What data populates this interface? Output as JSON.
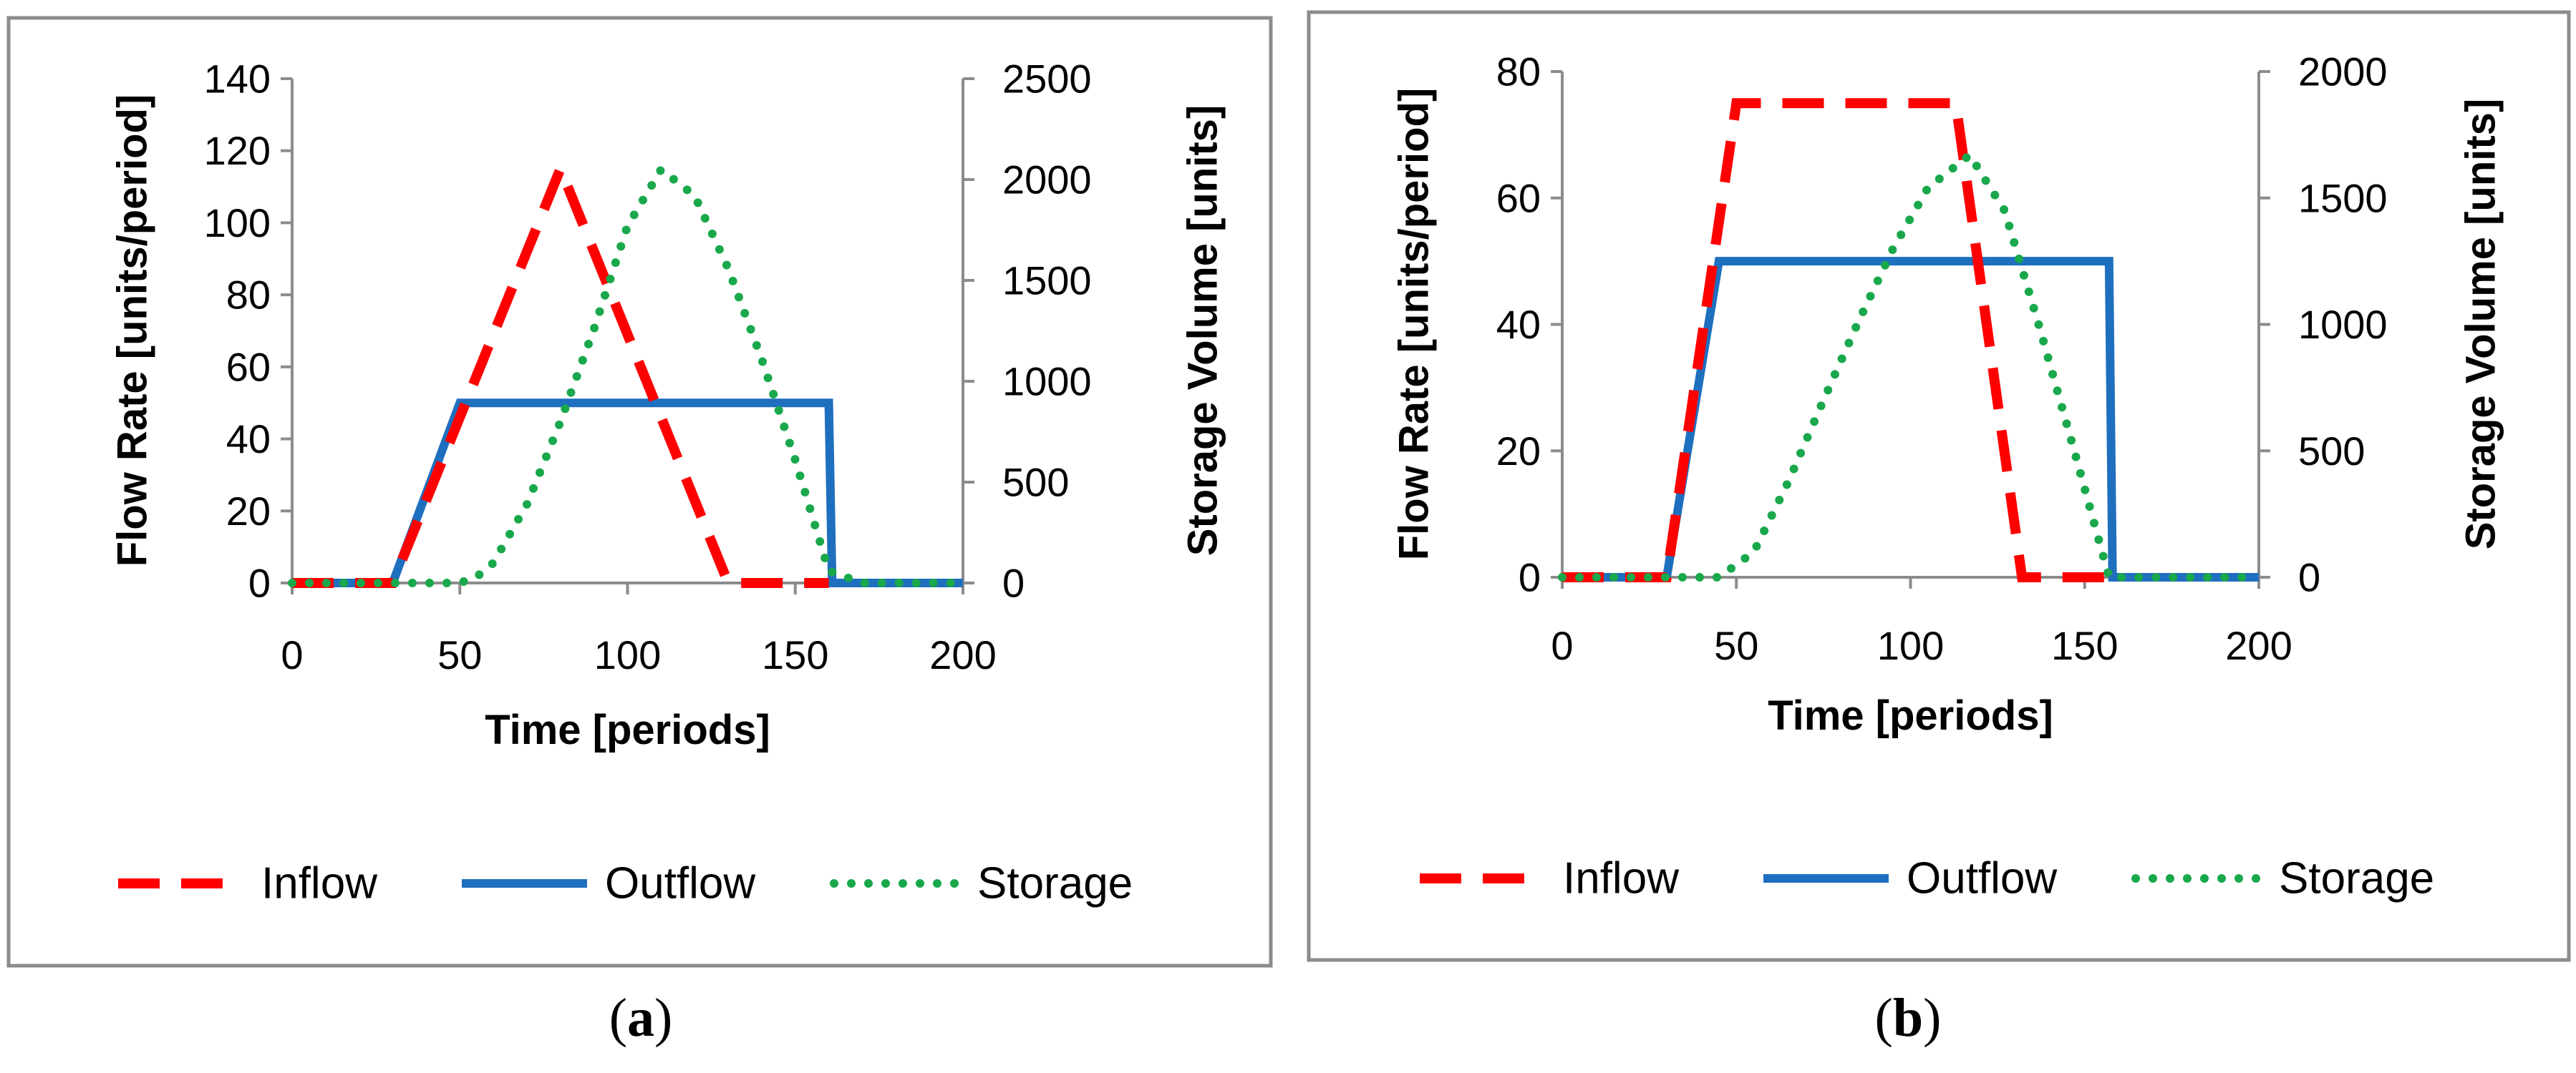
{
  "colors": {
    "inflow": "#ff0000",
    "outflow": "#1f6fbf",
    "storage": "#19a84b",
    "axis": "#8c8c8c",
    "frame": "#8c8c8c"
  },
  "chart_data": [
    {
      "id": "a",
      "panel_label": {
        "open": "(",
        "letter": "a",
        "close": ")"
      },
      "type": "line",
      "xlabel": "Time [periods]",
      "ylabel": "Flow Rate [units/period]",
      "y2label": "Storage Volume [units]",
      "xlim": [
        0,
        200
      ],
      "ylim": [
        0,
        140
      ],
      "y2lim": [
        0,
        2500
      ],
      "xticks": [
        0,
        50,
        100,
        150,
        200
      ],
      "yticks": [
        0,
        20,
        40,
        60,
        80,
        100,
        120,
        140
      ],
      "y2ticks": [
        0,
        500,
        1000,
        1500,
        2000,
        2500
      ],
      "legend": [
        "Inflow",
        "Outflow",
        "Storage"
      ],
      "legend_position": "bottom",
      "series": [
        {
          "name": "Inflow",
          "axis": "left",
          "style": "dashed",
          "points": [
            [
              0,
              0
            ],
            [
              30,
              0
            ],
            [
              80,
              115
            ],
            [
              130,
              0
            ],
            [
              160,
              0
            ]
          ]
        },
        {
          "name": "Outflow",
          "axis": "left",
          "style": "solid",
          "points": [
            [
              0,
              0
            ],
            [
              30,
              0
            ],
            [
              50,
              50
            ],
            [
              160,
              50
            ],
            [
              161,
              0
            ],
            [
              200,
              0
            ]
          ]
        },
        {
          "name": "Storage",
          "axis": "right",
          "style": "dotted",
          "points": [
            [
              0,
              0
            ],
            [
              50,
              0
            ],
            [
              55,
              30
            ],
            [
              60,
              100
            ],
            [
              70,
              390
            ],
            [
              80,
              800
            ],
            [
              90,
              1260
            ],
            [
              100,
              1770
            ],
            [
              110,
              2050
            ],
            [
              120,
              1920
            ],
            [
              130,
              1560
            ],
            [
              140,
              1110
            ],
            [
              150,
              610
            ],
            [
              160,
              60
            ],
            [
              170,
              0
            ],
            [
              200,
              0
            ]
          ]
        }
      ]
    },
    {
      "id": "b",
      "panel_label": {
        "open": "(",
        "letter": "b",
        "close": ")"
      },
      "type": "line",
      "xlabel": "Time [periods]",
      "ylabel": "Flow Rate [units/period]",
      "y2label": "Storage Volume [units]",
      "xlim": [
        0,
        200
      ],
      "ylim": [
        0,
        80
      ],
      "y2lim": [
        0,
        2000
      ],
      "xticks": [
        0,
        50,
        100,
        150,
        200
      ],
      "yticks": [
        0,
        20,
        40,
        60,
        80
      ],
      "y2ticks": [
        0,
        500,
        1000,
        1500,
        2000
      ],
      "legend": [
        "Inflow",
        "Outflow",
        "Storage"
      ],
      "legend_position": "bottom",
      "series": [
        {
          "name": "Inflow",
          "axis": "left",
          "style": "dashed",
          "points": [
            [
              0,
              0
            ],
            [
              30,
              0
            ],
            [
              50,
              75
            ],
            [
              113,
              75
            ],
            [
              132,
              0
            ],
            [
              160,
              0
            ]
          ]
        },
        {
          "name": "Outflow",
          "axis": "left",
          "style": "solid",
          "points": [
            [
              0,
              0
            ],
            [
              30,
              0
            ],
            [
              45,
              50
            ],
            [
              157,
              50
            ],
            [
              158,
              0
            ],
            [
              200,
              0
            ]
          ]
        },
        {
          "name": "Storage",
          "axis": "right",
          "style": "dotted",
          "points": [
            [
              0,
              0
            ],
            [
              45,
              0
            ],
            [
              55,
              100
            ],
            [
              65,
              380
            ],
            [
              75,
              700
            ],
            [
              85,
              1010
            ],
            [
              95,
              1300
            ],
            [
              105,
              1540
            ],
            [
              117,
              1670
            ],
            [
              127,
              1450
            ],
            [
              137,
              990
            ],
            [
              147,
              500
            ],
            [
              157,
              0
            ],
            [
              200,
              0
            ]
          ]
        }
      ]
    }
  ]
}
